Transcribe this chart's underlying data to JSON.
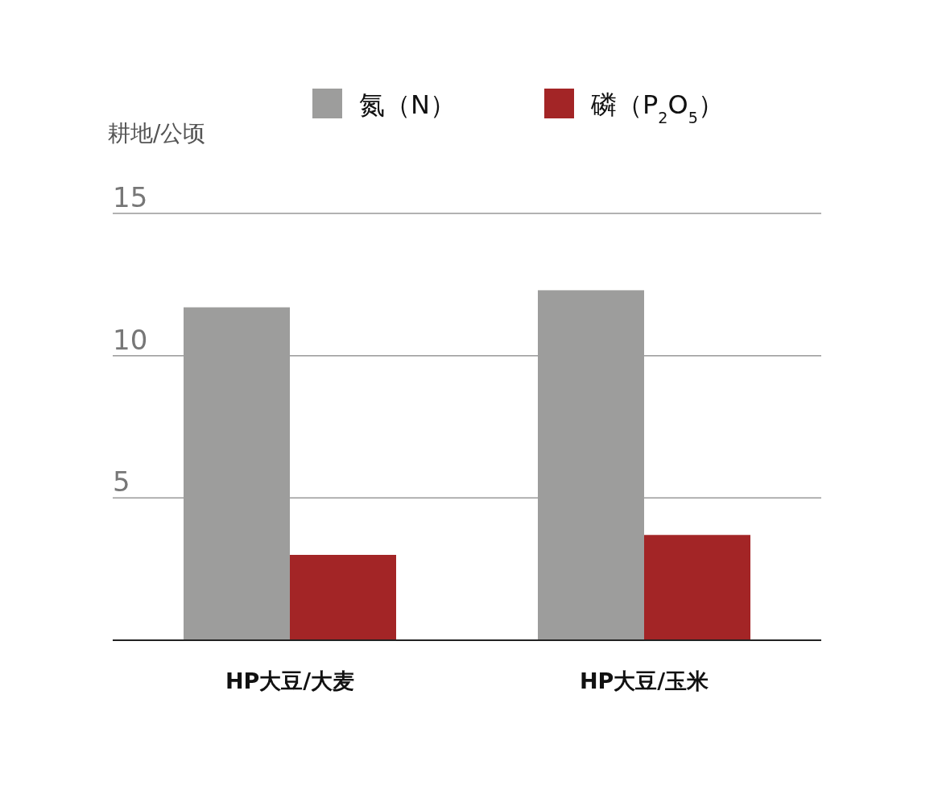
{
  "chart_data": {
    "type": "bar",
    "ylabel": "耕地/公顷",
    "categories": [
      "HP大豆/大麦",
      "HP大豆/玉米"
    ],
    "series": [
      {
        "name": "氮（N）",
        "color": "#9d9d9c",
        "values": [
          11.7,
          12.3
        ]
      },
      {
        "name": "磷（P$_{2}$O$_{5}$）",
        "color": "#a32526",
        "values": [
          3.0,
          3.7
        ]
      }
    ],
    "ylim": [
      0,
      15
    ],
    "yticks": [
      5,
      10,
      15
    ],
    "grid": "y",
    "legend": "top"
  }
}
